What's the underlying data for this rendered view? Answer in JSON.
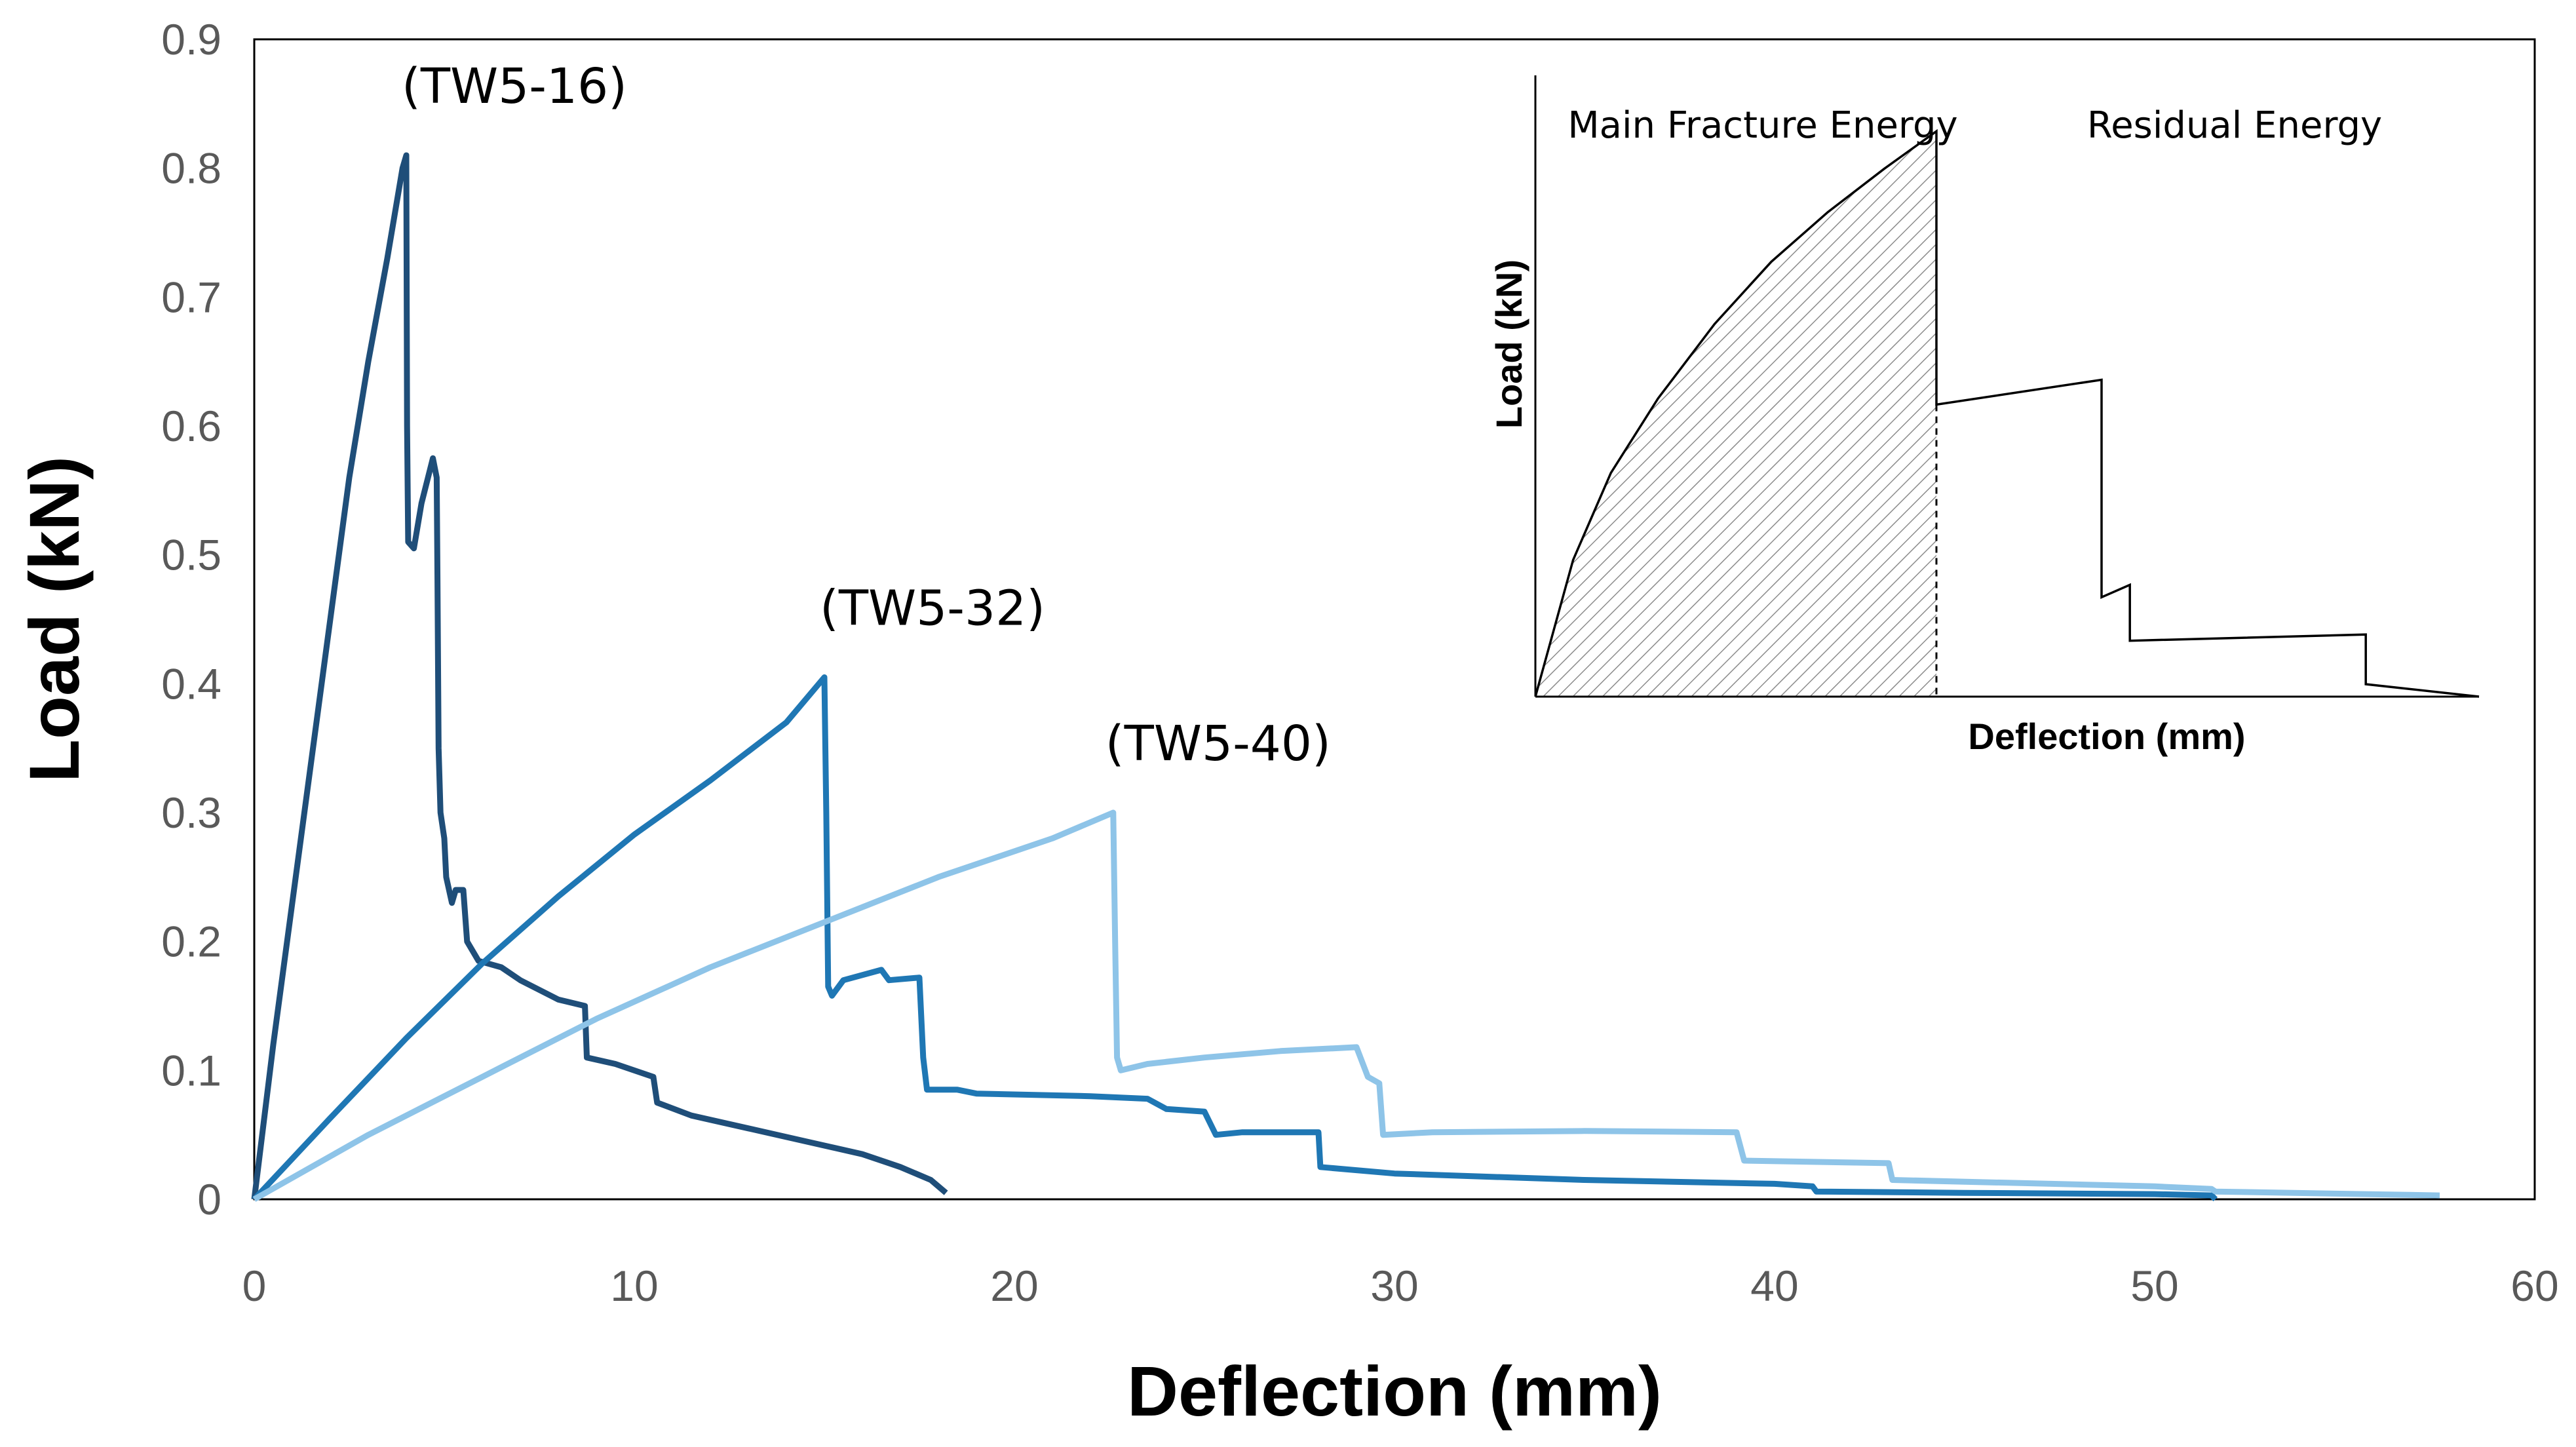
{
  "chart_data": {
    "type": "line",
    "title": "",
    "xlabel": "Deflection (mm)",
    "ylabel": "Load (kN)",
    "xlim": [
      0,
      60
    ],
    "ylim": [
      0,
      0.9
    ],
    "xticks": [
      "0",
      "10",
      "20",
      "30",
      "40",
      "50",
      "60"
    ],
    "yticks": [
      "0",
      "0.1",
      "0.2",
      "0.3",
      "0.4",
      "0.5",
      "0.6",
      "0.7",
      "0.8",
      "0.9"
    ],
    "series": [
      {
        "name": "(TW5-16)",
        "color": "#1f4e79",
        "points": [
          [
            0,
            0
          ],
          [
            0.5,
            0.12
          ],
          [
            1,
            0.23
          ],
          [
            1.5,
            0.34
          ],
          [
            2,
            0.45
          ],
          [
            2.5,
            0.56
          ],
          [
            3,
            0.65
          ],
          [
            3.5,
            0.73
          ],
          [
            3.9,
            0.8
          ],
          [
            4.0,
            0.81
          ],
          [
            4.02,
            0.6
          ],
          [
            4.05,
            0.51
          ],
          [
            4.2,
            0.505
          ],
          [
            4.4,
            0.54
          ],
          [
            4.7,
            0.575
          ],
          [
            4.8,
            0.56
          ],
          [
            4.82,
            0.48
          ],
          [
            4.85,
            0.35
          ],
          [
            4.9,
            0.3
          ],
          [
            5.0,
            0.28
          ],
          [
            5.05,
            0.25
          ],
          [
            5.2,
            0.23
          ],
          [
            5.3,
            0.24
          ],
          [
            5.5,
            0.24
          ],
          [
            5.6,
            0.2
          ],
          [
            5.9,
            0.185
          ],
          [
            6.5,
            0.18
          ],
          [
            7,
            0.17
          ],
          [
            8,
            0.155
          ],
          [
            8.7,
            0.15
          ],
          [
            8.75,
            0.11
          ],
          [
            9.5,
            0.105
          ],
          [
            10.5,
            0.095
          ],
          [
            10.6,
            0.075
          ],
          [
            11.5,
            0.065
          ],
          [
            13,
            0.055
          ],
          [
            14.5,
            0.045
          ],
          [
            16,
            0.035
          ],
          [
            17,
            0.025
          ],
          [
            17.8,
            0.015
          ],
          [
            18.2,
            0.005
          ]
        ]
      },
      {
        "name": "(TW5-32)",
        "color": "#1f77b4",
        "points": [
          [
            0,
            0
          ],
          [
            2,
            0.063
          ],
          [
            4,
            0.125
          ],
          [
            6,
            0.183
          ],
          [
            8,
            0.235
          ],
          [
            10,
            0.283
          ],
          [
            12,
            0.325
          ],
          [
            14,
            0.37
          ],
          [
            15,
            0.405
          ],
          [
            15.05,
            0.3
          ],
          [
            15.1,
            0.165
          ],
          [
            15.2,
            0.158
          ],
          [
            15.5,
            0.17
          ],
          [
            16.5,
            0.178
          ],
          [
            16.7,
            0.17
          ],
          [
            17.5,
            0.172
          ],
          [
            17.6,
            0.11
          ],
          [
            17.7,
            0.085
          ],
          [
            18.5,
            0.085
          ],
          [
            19,
            0.082
          ],
          [
            22,
            0.08
          ],
          [
            23.5,
            0.078
          ],
          [
            24,
            0.07
          ],
          [
            25,
            0.068
          ],
          [
            25.3,
            0.05
          ],
          [
            26,
            0.052
          ],
          [
            28,
            0.052
          ],
          [
            28.05,
            0.025
          ],
          [
            30,
            0.02
          ],
          [
            35,
            0.015
          ],
          [
            40,
            0.012
          ],
          [
            41,
            0.01
          ],
          [
            41.1,
            0.006
          ],
          [
            45,
            0.005
          ],
          [
            50,
            0.004
          ],
          [
            51.5,
            0.003
          ],
          [
            51.6,
            0.0
          ]
        ]
      },
      {
        "name": "(TW5-40)",
        "color": "#8ec4e8",
        "points": [
          [
            0,
            0
          ],
          [
            3,
            0.05
          ],
          [
            6,
            0.095
          ],
          [
            9,
            0.14
          ],
          [
            12,
            0.18
          ],
          [
            15,
            0.215
          ],
          [
            18,
            0.25
          ],
          [
            21,
            0.28
          ],
          [
            22.6,
            0.3
          ],
          [
            22.65,
            0.2
          ],
          [
            22.7,
            0.11
          ],
          [
            22.8,
            0.1
          ],
          [
            23.5,
            0.105
          ],
          [
            25,
            0.11
          ],
          [
            27,
            0.115
          ],
          [
            29,
            0.118
          ],
          [
            29.3,
            0.095
          ],
          [
            29.6,
            0.09
          ],
          [
            29.7,
            0.05
          ],
          [
            31,
            0.052
          ],
          [
            35,
            0.053
          ],
          [
            39,
            0.052
          ],
          [
            39.2,
            0.03
          ],
          [
            43,
            0.028
          ],
          [
            43.1,
            0.015
          ],
          [
            50,
            0.01
          ],
          [
            51.5,
            0.008
          ],
          [
            51.6,
            0.006
          ],
          [
            57.5,
            0.003
          ]
        ]
      }
    ],
    "inset": {
      "left_label": "Main Fracture Energy",
      "right_label": "Residual Energy",
      "xlabel": "Deflection (mm)",
      "ylabel": "Load (kN)",
      "xlim": [
        0,
        100
      ],
      "ylim": [
        0,
        100
      ],
      "curve_points": [
        [
          0,
          0
        ],
        [
          4,
          22
        ],
        [
          8,
          36
        ],
        [
          13,
          48
        ],
        [
          19,
          60
        ],
        [
          25,
          70
        ],
        [
          31,
          78
        ],
        [
          37,
          85
        ],
        [
          42.5,
          91
        ],
        [
          42.5,
          47
        ],
        [
          60,
          51
        ],
        [
          60,
          16
        ],
        [
          63,
          18
        ],
        [
          63,
          9
        ],
        [
          88,
          10
        ],
        [
          88,
          2
        ],
        [
          100,
          0
        ]
      ],
      "hatched_area": "main fracture energy under curve up to peak",
      "divider_x": 42.5
    }
  }
}
